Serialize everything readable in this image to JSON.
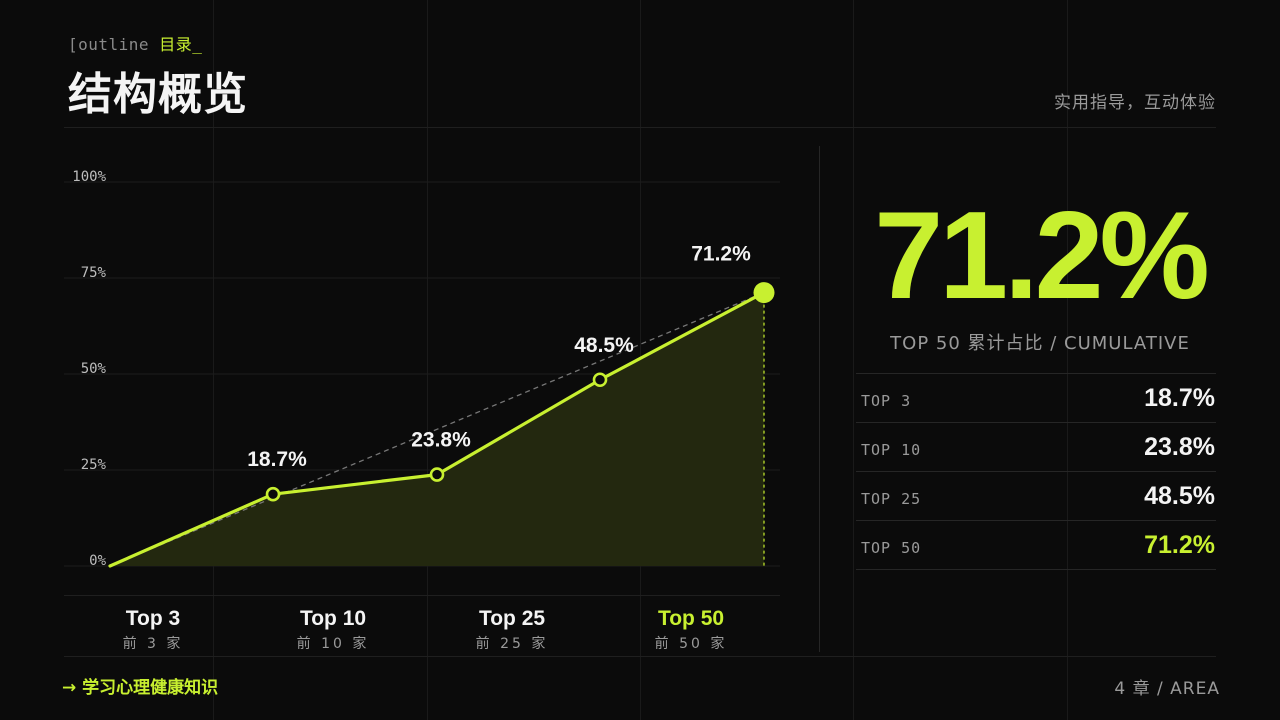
{
  "header": {
    "kicker_prefix": "[outline",
    "kicker_accent": "目录_",
    "title": "结构概览",
    "subtitle": "实用指导，互动体验"
  },
  "chart_data": {
    "type": "area",
    "categories": [
      "Top 3",
      "Top 10",
      "Top 25",
      "Top 50"
    ],
    "category_sublabels": [
      "前 3 家",
      "前 10 家",
      "前 25 家",
      "前 50 家"
    ],
    "values": [
      18.7,
      23.8,
      48.5,
      71.2
    ],
    "value_labels": [
      "18.7%",
      "23.8%",
      "48.5%",
      "71.2%"
    ],
    "origin_value": 0,
    "yticks": [
      0,
      25,
      50,
      75,
      100
    ],
    "ytick_labels": [
      "0%",
      "25%",
      "50%",
      "75%",
      "100%"
    ],
    "ylim": [
      0,
      100
    ],
    "highlight_index": 3,
    "trend_line": "dashed from origin to last point",
    "colors": {
      "accent": "#c8f030",
      "fill": "#23280f",
      "trend": "#777777"
    }
  },
  "stat": {
    "value": "71.2%",
    "caption": "TOP 50  累计占比  / CUMULATIVE"
  },
  "table": {
    "rows": [
      {
        "key": "TOP 3",
        "value": "18.7%"
      },
      {
        "key": "TOP 10",
        "value": "23.8%"
      },
      {
        "key": "TOP 25",
        "value": "48.5%"
      },
      {
        "key": "TOP 50",
        "value": "71.2%"
      }
    ]
  },
  "footer": {
    "left": "→  学习心理健康知识",
    "right": "4  章  / AREA"
  }
}
